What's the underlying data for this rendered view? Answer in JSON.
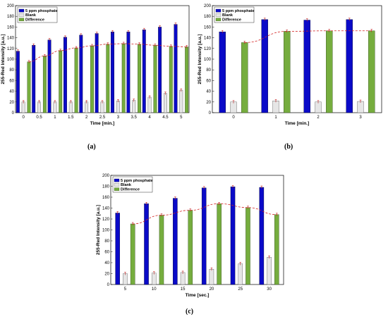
{
  "colors": {
    "phosphate": "#0a0ac8",
    "blank": "#e6e6e6",
    "difference": "#76ad3e",
    "trend": "#d22020",
    "error": "#c22020"
  },
  "chart_data": [
    {
      "type": "bar",
      "caption": "(a)",
      "xlabel": "Time [min.]",
      "ylabel": "255-Red Intensity [a.u.]",
      "ylim": [
        0,
        200
      ],
      "yticks": [
        0,
        20,
        40,
        60,
        80,
        100,
        120,
        140,
        160,
        180,
        200
      ],
      "grid": false,
      "legend_position": "top-left",
      "categories": [
        "0",
        "0.5",
        "1",
        "1.5",
        "2",
        "2.5",
        "3",
        "3.5",
        "4",
        "4.5",
        "5"
      ],
      "series": [
        {
          "name": "5 ppm phosphate",
          "values": [
            115,
            126,
            136,
            141,
            145,
            148,
            151,
            151,
            155,
            160,
            165
          ]
        },
        {
          "name": "Blank",
          "values": [
            20,
            20,
            20,
            20,
            20,
            20,
            22,
            23,
            29,
            36,
            42
          ]
        },
        {
          "name": "Difference",
          "values": [
            95,
            106,
            116,
            121,
            125,
            128,
            129,
            128,
            126,
            124,
            123
          ]
        }
      ],
      "trend_series_index": 2
    },
    {
      "type": "bar",
      "caption": "(b)",
      "xlabel": "Time [min.]",
      "ylabel": "255-Red Intensity [a.u.]",
      "ylim": [
        0,
        200
      ],
      "yticks": [
        0,
        20,
        40,
        60,
        80,
        100,
        120,
        140,
        160,
        180,
        200
      ],
      "grid": false,
      "legend_position": "top-left",
      "categories": [
        "0",
        "1",
        "2",
        "3"
      ],
      "series": [
        {
          "name": "5 ppm phosphate",
          "values": [
            151,
            174,
            173,
            174
          ]
        },
        {
          "name": "Blank",
          "values": [
            20,
            22,
            20,
            21
          ]
        },
        {
          "name": "Difference",
          "values": [
            131,
            152,
            153,
            153
          ]
        }
      ],
      "trend_series_index": 2
    },
    {
      "type": "bar",
      "caption": "(c)",
      "xlabel": "Time [sec.]",
      "ylabel": "255-Red Intensity [a.u.]",
      "ylim": [
        0,
        200
      ],
      "yticks": [
        0,
        20,
        40,
        60,
        80,
        100,
        120,
        140,
        160,
        180,
        200
      ],
      "grid": false,
      "legend_position": "top-left",
      "categories": [
        "5",
        "10",
        "15",
        "20",
        "25",
        "30"
      ],
      "series": [
        {
          "name": "5 ppm phosphate",
          "values": [
            131,
            148,
            158,
            177,
            179,
            178
          ]
        },
        {
          "name": "Blank",
          "values": [
            20,
            21,
            22,
            28,
            38,
            50
          ]
        },
        {
          "name": "Difference",
          "values": [
            111,
            127,
            136,
            148,
            141,
            128
          ]
        }
      ],
      "trend_series_index": 2
    }
  ]
}
